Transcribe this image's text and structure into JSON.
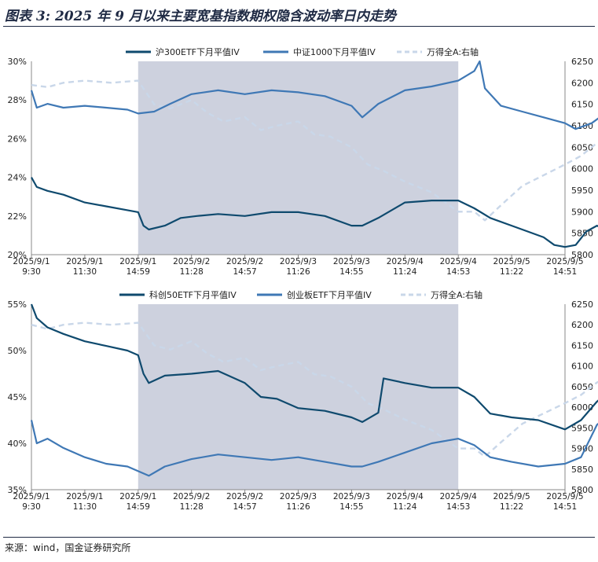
{
  "page": {
    "title": "图表 3: 2025 年 9 月以来主要宽基指数期权隐含波动率日内走势",
    "source": "来源：wind，国金证券研究所"
  },
  "colors": {
    "series_dark": "#0f4a6e",
    "series_mid": "#3f78b5",
    "series_light": "#c9d7e9",
    "shade": "#c8ccda",
    "axis": "#888888"
  },
  "chart_data": [
    {
      "type": "line",
      "x_ticks": [
        "2025/9/1\n9:30",
        "2025/9/1\n11:30",
        "2025/9/1\n14:59",
        "2025/9/2\n11:28",
        "2025/9/2\n14:57",
        "2025/9/3\n11:26",
        "2025/9/3\n14:55",
        "2025/9/4\n11:24",
        "2025/9/4\n14:53",
        "2025/9/5\n11:22",
        "2025/9/5\n14:51"
      ],
      "ylim_left": [
        20,
        30
      ],
      "yticks_left": [
        "20%",
        "22%",
        "24%",
        "26%",
        "28%",
        "30%"
      ],
      "ylim_right": [
        5800,
        6250
      ],
      "yticks_right": [
        "5800",
        "5850",
        "5900",
        "5950",
        "6000",
        "6050",
        "6100",
        "6150",
        "6200",
        "6250"
      ],
      "shaded_span": [
        2,
        8
      ],
      "legend": "top",
      "series": [
        {
          "name": "沪300ETF下月平值IV",
          "axis": "left",
          "style": "dark",
          "points": [
            [
              0,
              24.0
            ],
            [
              0.1,
              23.5
            ],
            [
              0.3,
              23.3
            ],
            [
              0.6,
              23.1
            ],
            [
              1.0,
              22.7
            ],
            [
              1.4,
              22.5
            ],
            [
              1.8,
              22.3
            ],
            [
              2.0,
              22.2
            ],
            [
              2.1,
              21.5
            ],
            [
              2.2,
              21.3
            ],
            [
              2.5,
              21.5
            ],
            [
              2.8,
              21.9
            ],
            [
              3.1,
              22.0
            ],
            [
              3.5,
              22.1
            ],
            [
              4.0,
              22.0
            ],
            [
              4.5,
              22.2
            ],
            [
              5.0,
              22.2
            ],
            [
              5.5,
              22.0
            ],
            [
              6.0,
              21.5
            ],
            [
              6.2,
              21.5
            ],
            [
              6.5,
              21.9
            ],
            [
              7.0,
              22.7
            ],
            [
              7.5,
              22.8
            ],
            [
              8.0,
              22.8
            ],
            [
              8.3,
              22.4
            ],
            [
              8.6,
              21.9
            ],
            [
              9.0,
              21.5
            ],
            [
              9.3,
              21.2
            ],
            [
              9.6,
              20.9
            ],
            [
              9.8,
              20.5
            ],
            [
              10.0,
              20.4
            ],
            [
              10.2,
              20.5
            ],
            [
              10.4,
              21.2
            ],
            [
              10.6,
              21.5
            ],
            [
              10.8,
              21.2
            ],
            [
              11.0,
              20.9
            ]
          ]
        },
        {
          "name": "中证1000下月平值IV",
          "axis": "left",
          "style": "mid",
          "points": [
            [
              0,
              28.5
            ],
            [
              0.1,
              27.6
            ],
            [
              0.3,
              27.8
            ],
            [
              0.6,
              27.6
            ],
            [
              1.0,
              27.7
            ],
            [
              1.4,
              27.6
            ],
            [
              1.8,
              27.5
            ],
            [
              2.0,
              27.3
            ],
            [
              2.3,
              27.4
            ],
            [
              2.6,
              27.8
            ],
            [
              3.0,
              28.3
            ],
            [
              3.5,
              28.5
            ],
            [
              4.0,
              28.3
            ],
            [
              4.5,
              28.5
            ],
            [
              5.0,
              28.4
            ],
            [
              5.5,
              28.2
            ],
            [
              6.0,
              27.7
            ],
            [
              6.2,
              27.1
            ],
            [
              6.5,
              27.8
            ],
            [
              7.0,
              28.5
            ],
            [
              7.5,
              28.7
            ],
            [
              8.0,
              29.0
            ],
            [
              8.3,
              29.5
            ],
            [
              8.4,
              30.0
            ],
            [
              8.5,
              28.6
            ],
            [
              8.8,
              27.7
            ],
            [
              9.2,
              27.4
            ],
            [
              9.6,
              27.1
            ],
            [
              10.0,
              26.8
            ],
            [
              10.2,
              26.5
            ],
            [
              10.5,
              26.8
            ],
            [
              10.8,
              27.4
            ],
            [
              11.0,
              27.1
            ]
          ]
        },
        {
          "name": "万得全A:右轴",
          "axis": "right",
          "style": "light",
          "points": [
            [
              0,
              6195
            ],
            [
              0.3,
              6190
            ],
            [
              0.6,
              6200
            ],
            [
              1.0,
              6205
            ],
            [
              1.5,
              6200
            ],
            [
              2.0,
              6205
            ],
            [
              2.3,
              6150
            ],
            [
              2.6,
              6140
            ],
            [
              3.0,
              6160
            ],
            [
              3.3,
              6130
            ],
            [
              3.6,
              6110
            ],
            [
              4.0,
              6120
            ],
            [
              4.3,
              6090
            ],
            [
              4.6,
              6100
            ],
            [
              5.0,
              6110
            ],
            [
              5.3,
              6080
            ],
            [
              5.6,
              6075
            ],
            [
              6.0,
              6050
            ],
            [
              6.3,
              6010
            ],
            [
              6.6,
              5995
            ],
            [
              7.0,
              5970
            ],
            [
              7.5,
              5945
            ],
            [
              8.0,
              5900
            ],
            [
              8.3,
              5900
            ],
            [
              8.5,
              5880
            ],
            [
              8.8,
              5915
            ],
            [
              9.2,
              5960
            ],
            [
              9.6,
              5985
            ],
            [
              10.0,
              6010
            ],
            [
              10.3,
              6030
            ],
            [
              10.6,
              6060
            ],
            [
              11.0,
              6080
            ]
          ]
        }
      ]
    },
    {
      "type": "line",
      "x_ticks": [
        "2025/9/1\n9:30",
        "2025/9/1\n11:30",
        "2025/9/1\n14:59",
        "2025/9/2\n11:28",
        "2025/9/2\n14:57",
        "2025/9/3\n11:26",
        "2025/9/3\n14:55",
        "2025/9/4\n11:24",
        "2025/9/4\n14:53",
        "2025/9/5\n11:22",
        "2025/9/5\n14:51"
      ],
      "ylim_left": [
        35,
        55
      ],
      "yticks_left": [
        "35%",
        "40%",
        "45%",
        "50%",
        "55%"
      ],
      "ylim_right": [
        5800,
        6250
      ],
      "yticks_right": [
        "5800",
        "5850",
        "5900",
        "5950",
        "6000",
        "6050",
        "6100",
        "6150",
        "6200",
        "6250"
      ],
      "shaded_span": [
        2,
        8
      ],
      "legend": "top",
      "series": [
        {
          "name": "科创50ETF下月平值IV",
          "axis": "left",
          "style": "dark",
          "points": [
            [
              0,
              55.0
            ],
            [
              0.1,
              53.5
            ],
            [
              0.3,
              52.5
            ],
            [
              0.6,
              51.8
            ],
            [
              1.0,
              51.0
            ],
            [
              1.4,
              50.5
            ],
            [
              1.8,
              50.0
            ],
            [
              2.0,
              49.5
            ],
            [
              2.1,
              47.5
            ],
            [
              2.2,
              46.5
            ],
            [
              2.5,
              47.3
            ],
            [
              3.0,
              47.5
            ],
            [
              3.5,
              47.8
            ],
            [
              4.0,
              46.5
            ],
            [
              4.3,
              45.0
            ],
            [
              4.6,
              44.8
            ],
            [
              5.0,
              43.8
            ],
            [
              5.5,
              43.5
            ],
            [
              6.0,
              42.8
            ],
            [
              6.2,
              42.3
            ],
            [
              6.5,
              43.3
            ],
            [
              6.6,
              47.0
            ],
            [
              7.0,
              46.5
            ],
            [
              7.5,
              46.0
            ],
            [
              8.0,
              46.0
            ],
            [
              8.3,
              45.0
            ],
            [
              8.6,
              43.2
            ],
            [
              9.0,
              42.8
            ],
            [
              9.5,
              42.5
            ],
            [
              10.0,
              41.5
            ],
            [
              10.3,
              42.5
            ],
            [
              10.6,
              44.5
            ],
            [
              10.8,
              45.5
            ],
            [
              11.0,
              44.2
            ]
          ]
        },
        {
          "name": "创业板ETF下月平值IV",
          "axis": "left",
          "style": "mid",
          "points": [
            [
              0,
              42.5
            ],
            [
              0.1,
              40.0
            ],
            [
              0.3,
              40.5
            ],
            [
              0.6,
              39.5
            ],
            [
              1.0,
              38.5
            ],
            [
              1.4,
              37.8
            ],
            [
              1.8,
              37.5
            ],
            [
              2.0,
              37.0
            ],
            [
              2.2,
              36.5
            ],
            [
              2.5,
              37.5
            ],
            [
              3.0,
              38.3
            ],
            [
              3.5,
              38.8
            ],
            [
              4.0,
              38.5
            ],
            [
              4.5,
              38.2
            ],
            [
              5.0,
              38.5
            ],
            [
              5.5,
              38.0
            ],
            [
              6.0,
              37.5
            ],
            [
              6.2,
              37.5
            ],
            [
              6.5,
              38.0
            ],
            [
              7.0,
              39.0
            ],
            [
              7.5,
              40.0
            ],
            [
              8.0,
              40.5
            ],
            [
              8.3,
              39.8
            ],
            [
              8.6,
              38.5
            ],
            [
              9.0,
              38.0
            ],
            [
              9.5,
              37.5
            ],
            [
              10.0,
              37.8
            ],
            [
              10.3,
              38.5
            ],
            [
              10.6,
              42.0
            ],
            [
              10.8,
              43.0
            ],
            [
              11.0,
              41.7
            ]
          ]
        },
        {
          "name": "万得全A:右轴",
          "axis": "right",
          "style": "light",
          "points": [
            [
              0,
              6200
            ],
            [
              0.3,
              6190
            ],
            [
              0.6,
              6200
            ],
            [
              1.0,
              6205
            ],
            [
              1.5,
              6200
            ],
            [
              2.0,
              6205
            ],
            [
              2.3,
              6150
            ],
            [
              2.6,
              6140
            ],
            [
              3.0,
              6160
            ],
            [
              3.3,
              6130
            ],
            [
              3.6,
              6110
            ],
            [
              4.0,
              6120
            ],
            [
              4.3,
              6090
            ],
            [
              4.6,
              6100
            ],
            [
              5.0,
              6110
            ],
            [
              5.3,
              6080
            ],
            [
              5.6,
              6075
            ],
            [
              6.0,
              6050
            ],
            [
              6.3,
              6010
            ],
            [
              6.6,
              5995
            ],
            [
              7.0,
              5970
            ],
            [
              7.5,
              5945
            ],
            [
              8.0,
              5900
            ],
            [
              8.3,
              5900
            ],
            [
              8.5,
              5880
            ],
            [
              8.8,
              5915
            ],
            [
              9.2,
              5960
            ],
            [
              9.6,
              5985
            ],
            [
              10.0,
              6010
            ],
            [
              10.3,
              6030
            ],
            [
              10.6,
              6060
            ],
            [
              11.0,
              6085
            ]
          ]
        }
      ]
    }
  ]
}
